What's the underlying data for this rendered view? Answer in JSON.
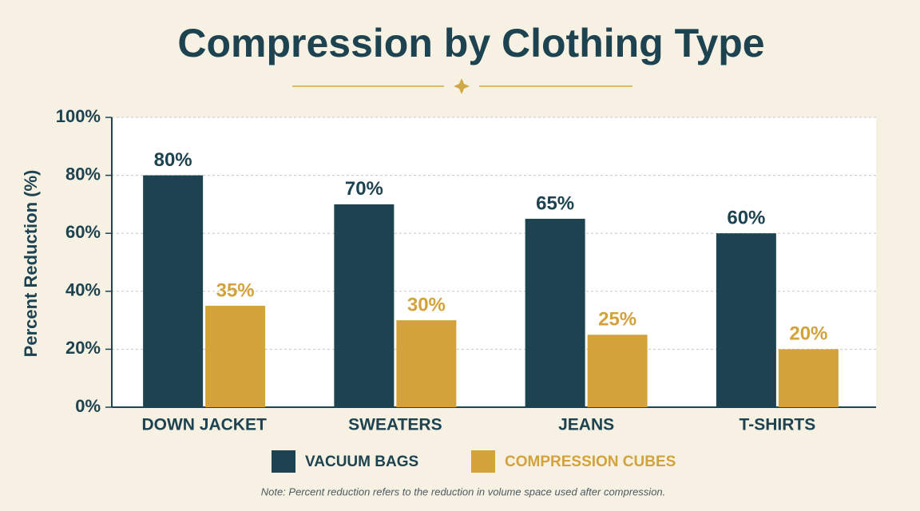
{
  "chart_data": {
    "type": "bar",
    "title": "Compression by Clothing Type",
    "y_label": "Percent Reduction (%)",
    "note": "Note: Percent reduction refers to the reduction in volume space used after compression.",
    "categories": [
      "DOWN JACKET",
      "SWEATERS",
      "JEANS",
      "T-SHIRTS"
    ],
    "series": [
      {
        "name": "VACUUM BAGS",
        "color": "#1d4250",
        "values": [
          80,
          70,
          65,
          60
        ],
        "value_labels": [
          "80%",
          "70%",
          "65%",
          "60%"
        ]
      },
      {
        "name": "COMPRESSION CUBES",
        "color": "#d4a23a",
        "values": [
          35,
          30,
          25,
          20
        ],
        "value_labels": [
          "35%",
          "30%",
          "25%",
          "20%"
        ]
      }
    ],
    "ylim": [
      0,
      100
    ],
    "yticks": [
      {
        "value": 0,
        "label": "0%"
      },
      {
        "value": 20,
        "label": "20%"
      },
      {
        "value": 40,
        "label": "40%"
      },
      {
        "value": 60,
        "label": "60%"
      },
      {
        "value": 80,
        "label": "80%"
      },
      {
        "value": 100,
        "label": "100%"
      }
    ],
    "grid": true
  }
}
